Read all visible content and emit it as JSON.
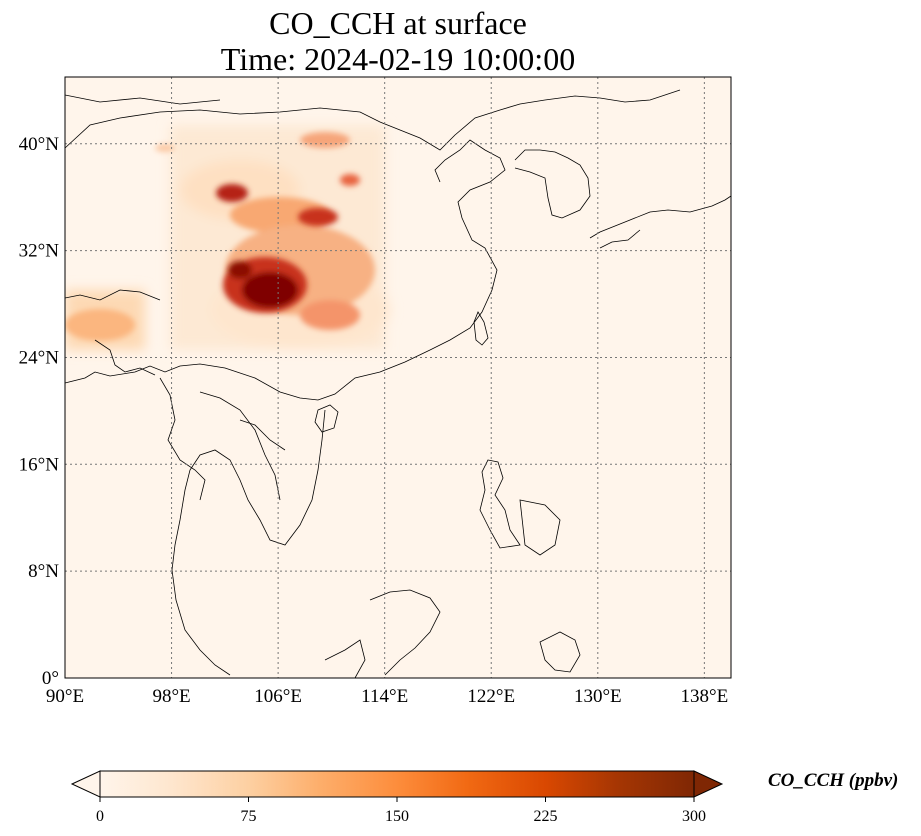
{
  "title": {
    "line1": "CO_CCH at surface",
    "line2": "Time: 2024-02-19 10:00:00"
  },
  "map": {
    "extent": {
      "lon": [
        90,
        140
      ],
      "lat": [
        0,
        45
      ]
    },
    "lon_ticks": [
      {
        "value": 90,
        "label": "90°E"
      },
      {
        "value": 98,
        "label": "98°E"
      },
      {
        "value": 106,
        "label": "106°E"
      },
      {
        "value": 114,
        "label": "114°E"
      },
      {
        "value": 122,
        "label": "122°E"
      },
      {
        "value": 130,
        "label": "130°E"
      },
      {
        "value": 138,
        "label": "138°E"
      }
    ],
    "lat_ticks": [
      {
        "value": 0,
        "label": "0°"
      },
      {
        "value": 8,
        "label": "8°N"
      },
      {
        "value": 16,
        "label": "16°N"
      },
      {
        "value": 24,
        "label": "24°N"
      },
      {
        "value": 32,
        "label": "32°N"
      },
      {
        "value": 40,
        "label": "40°N"
      }
    ],
    "gridlines": true,
    "background_color": "#fff5eb"
  },
  "colorbar": {
    "label": "CO_CCH (ppbv)",
    "range": [
      0,
      300
    ],
    "extend": "both",
    "ticks": [
      {
        "value": 0,
        "label": "0"
      },
      {
        "value": 75,
        "label": "75"
      },
      {
        "value": 150,
        "label": "150"
      },
      {
        "value": 225,
        "label": "225"
      },
      {
        "value": 300,
        "label": "300"
      }
    ],
    "colormap": [
      "#fff5eb",
      "#fee6ce",
      "#fdd0a2",
      "#fdae6b",
      "#fd8d3c",
      "#f16913",
      "#d94801",
      "#a63603",
      "#7f2704"
    ],
    "colormap_name": "OrRd"
  }
}
